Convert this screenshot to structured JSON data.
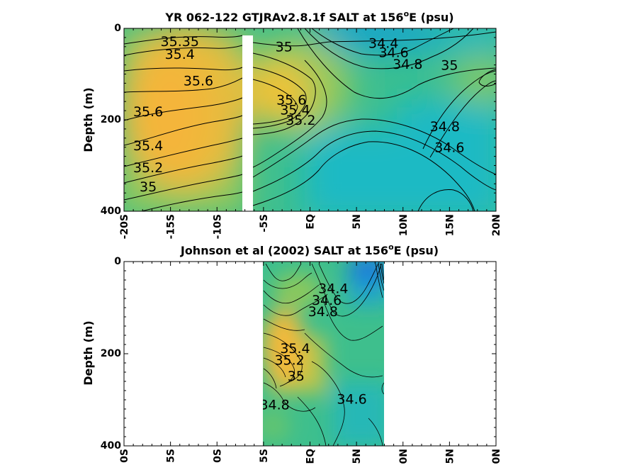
{
  "chart_data": [
    {
      "type": "heatmap",
      "title_main": "YR 062-122 GTJRAv2.8.1f SALT at 156",
      "title_sup": "o",
      "title_end": "E (psu)",
      "ylabel": "Depth (m)",
      "xlim": [
        -20,
        20
      ],
      "ylim": [
        0,
        400
      ],
      "y_ticks": [
        "0",
        "200",
        "400"
      ],
      "x_ticks": [
        "-20S",
        "-15S",
        "-10S",
        "-5S",
        "EQ",
        "5N",
        "10N",
        "15N",
        "20N"
      ],
      "gap_lat": -7,
      "contour_labels": [
        {
          "text": "35.35",
          "lat": -14.0,
          "depth": 30
        },
        {
          "text": "35.4",
          "lat": -14.0,
          "depth": 58
        },
        {
          "text": "35.6",
          "lat": -12.0,
          "depth": 116
        },
        {
          "text": "35.6",
          "lat": -17.4,
          "depth": 184
        },
        {
          "text": "35.4",
          "lat": -17.4,
          "depth": 258
        },
        {
          "text": "35.2",
          "lat": -17.4,
          "depth": 306
        },
        {
          "text": "35",
          "lat": -17.4,
          "depth": 348
        },
        {
          "text": "35",
          "lat": -2.8,
          "depth": 42
        },
        {
          "text": "34.4",
          "lat": 7.9,
          "depth": 34
        },
        {
          "text": "34.6",
          "lat": 9.0,
          "depth": 54
        },
        {
          "text": "34.8",
          "lat": 10.5,
          "depth": 80
        },
        {
          "text": "35",
          "lat": 15.0,
          "depth": 82
        },
        {
          "text": "35.6",
          "lat": -2.0,
          "depth": 158
        },
        {
          "text": "35.4",
          "lat": -1.6,
          "depth": 180
        },
        {
          "text": "35.2",
          "lat": -1.0,
          "depth": 202
        },
        {
          "text": "34.8",
          "lat": 14.5,
          "depth": 216
        },
        {
          "text": "34.6",
          "lat": 15.0,
          "depth": 262
        }
      ]
    },
    {
      "type": "heatmap",
      "title_main": "Johnson et al (2002) SALT at 156",
      "title_sup": "o",
      "title_end": "E (psu)",
      "ylabel": "Depth (m)",
      "xlim": [
        -20,
        20
      ],
      "ylim": [
        0,
        400
      ],
      "data_lat_range": [
        -5,
        8
      ],
      "y_ticks": [
        "0",
        "200",
        "400"
      ],
      "x_ticks": [
        "0S",
        "5S",
        "0S",
        "5S",
        "EQ",
        "5N",
        "0N",
        "5N",
        "0N"
      ],
      "contour_labels": [
        {
          "text": "34.4",
          "lat": 2.5,
          "depth": 60
        },
        {
          "text": "34.6",
          "lat": 1.8,
          "depth": 85
        },
        {
          "text": "34.8",
          "lat": 1.4,
          "depth": 110
        },
        {
          "text": "35.4",
          "lat": -1.6,
          "depth": 190
        },
        {
          "text": "35.2",
          "lat": -2.2,
          "depth": 215
        },
        {
          "text": "35",
          "lat": -1.5,
          "depth": 250
        },
        {
          "text": "34.8",
          "lat": -3.8,
          "depth": 312
        },
        {
          "text": "34.6",
          "lat": 4.5,
          "depth": 300
        }
      ]
    }
  ]
}
